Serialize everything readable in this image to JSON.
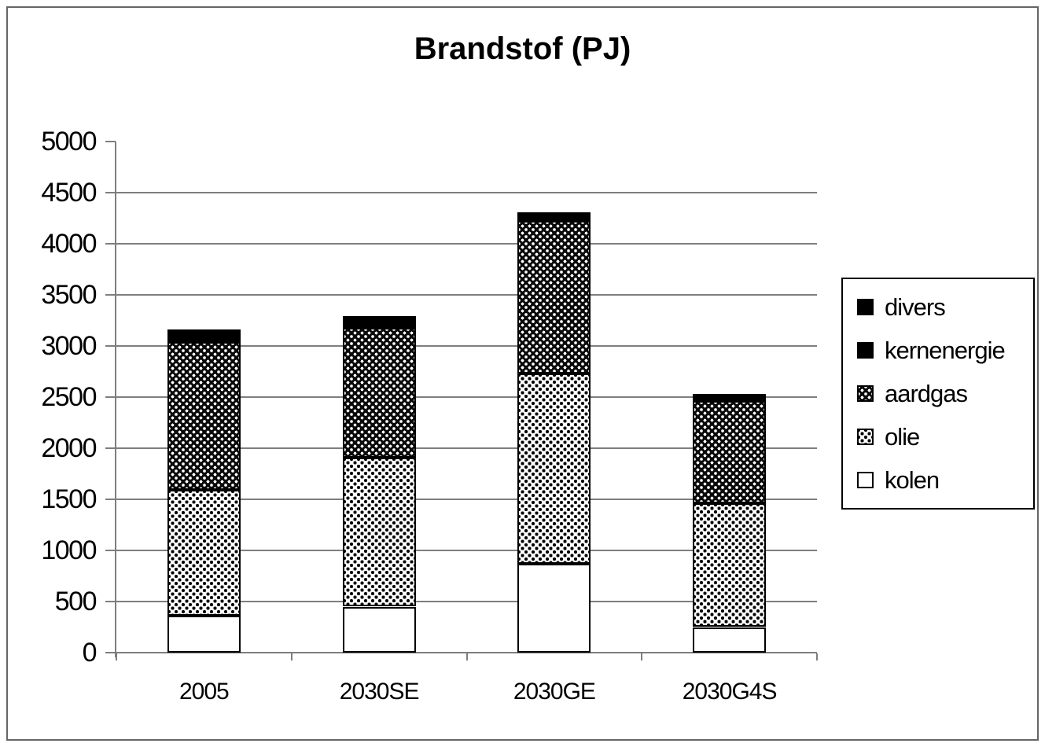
{
  "chart_data": {
    "type": "bar",
    "stacked": true,
    "title": "Brandstof (PJ)",
    "categories": [
      "2005",
      "2030SE",
      "2030GE",
      "2030G4S"
    ],
    "series": [
      {
        "name": "kolen",
        "pattern": "white",
        "values": [
          360,
          450,
          870,
          250
        ]
      },
      {
        "name": "olie",
        "pattern": "light-dots",
        "values": [
          1230,
          1460,
          1860,
          1210
        ]
      },
      {
        "name": "aardgas",
        "pattern": "dense-dots",
        "values": [
          1450,
          1270,
          1490,
          1000
        ]
      },
      {
        "name": "kernenergie",
        "pattern": "solid-black",
        "values": [
          40,
          40,
          40,
          35
        ]
      },
      {
        "name": "divers",
        "pattern": "solid-black",
        "values": [
          80,
          70,
          50,
          35
        ]
      }
    ],
    "totals": [
      3160,
      3290,
      4310,
      2530
    ],
    "ylim": [
      0,
      5000
    ],
    "ytick_step": 500,
    "yticks": [
      "0",
      "500",
      "1000",
      "1500",
      "2000",
      "2500",
      "3000",
      "3500",
      "4000",
      "4500",
      "5000"
    ],
    "grid": true,
    "legend_position": "right"
  },
  "legend": {
    "items": [
      {
        "label": "divers",
        "pattern": "solid-black"
      },
      {
        "label": "kernenergie",
        "pattern": "solid-black"
      },
      {
        "label": "aardgas",
        "pattern": "dense-dots"
      },
      {
        "label": "olie",
        "pattern": "light-dots"
      },
      {
        "label": "kolen",
        "pattern": "white"
      }
    ]
  },
  "colors": {
    "foreground": "#000000",
    "background": "#ffffff",
    "gridline": "#7e7e7e",
    "bar_border": "#000000"
  }
}
